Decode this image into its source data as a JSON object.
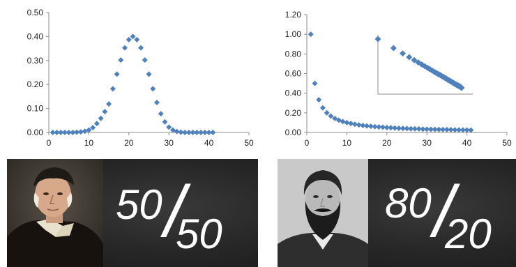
{
  "chart_data": [
    {
      "type": "scatter",
      "title": "",
      "xlabel": "",
      "ylabel": "",
      "xlim": [
        0,
        50
      ],
      "ylim": [
        0,
        0.5
      ],
      "x_ticks": [
        "0",
        "10",
        "20",
        "30",
        "40",
        "50"
      ],
      "y_ticks": [
        "0.00",
        "0.10",
        "0.20",
        "0.30",
        "0.40",
        "0.50"
      ],
      "grid": false,
      "marker": "diamond",
      "color": "#4f81bd",
      "series": [
        {
          "x": [
            1,
            2,
            3,
            4,
            5,
            6,
            7,
            8,
            9,
            10,
            11,
            12,
            13,
            14,
            15,
            16,
            17,
            18,
            19,
            20,
            21,
            22,
            23,
            24,
            25,
            26,
            27,
            28,
            29,
            30,
            31,
            32,
            33,
            34,
            35,
            36,
            37,
            38,
            39,
            40,
            41
          ],
          "y": [
            0.0,
            0.0,
            0.0,
            0.0,
            0.0,
            0.0,
            0.001,
            0.002,
            0.005,
            0.01,
            0.02,
            0.037,
            0.059,
            0.087,
            0.119,
            0.182,
            0.243,
            0.302,
            0.353,
            0.387,
            0.4,
            0.387,
            0.353,
            0.302,
            0.243,
            0.182,
            0.125,
            0.078,
            0.044,
            0.022,
            0.01,
            0.004,
            0.001,
            0.0,
            0.0,
            0.0,
            0.0,
            0.0,
            0.0,
            0.0,
            0.0
          ]
        }
      ]
    },
    {
      "type": "scatter",
      "title": "",
      "xlabel": "",
      "ylabel": "",
      "xlim": [
        0,
        50
      ],
      "ylim": [
        0,
        1.2
      ],
      "x_ticks": [
        "0",
        "10",
        "20",
        "30",
        "40",
        "50"
      ],
      "y_ticks": [
        "0.00",
        "0.20",
        "0.40",
        "0.60",
        "0.80",
        "1.00",
        "1.20"
      ],
      "grid": false,
      "marker": "diamond",
      "color": "#4f81bd",
      "series": [
        {
          "x": [
            1,
            2,
            3,
            4,
            5,
            6,
            7,
            8,
            9,
            10,
            11,
            12,
            13,
            14,
            15,
            16,
            17,
            18,
            19,
            20,
            21,
            22,
            23,
            24,
            25,
            26,
            27,
            28,
            29,
            30,
            31,
            32,
            33,
            34,
            35,
            36,
            37,
            38,
            39,
            40,
            41
          ],
          "y": [
            1.0,
            0.5,
            0.333,
            0.25,
            0.2,
            0.167,
            0.143,
            0.125,
            0.111,
            0.1,
            0.091,
            0.083,
            0.077,
            0.071,
            0.067,
            0.063,
            0.059,
            0.056,
            0.053,
            0.05,
            0.048,
            0.045,
            0.043,
            0.042,
            0.04,
            0.038,
            0.037,
            0.036,
            0.034,
            0.033,
            0.032,
            0.031,
            0.03,
            0.029,
            0.029,
            0.028,
            0.027,
            0.026,
            0.026,
            0.025,
            0.024
          ]
        }
      ],
      "inset": {
        "type": "scatter",
        "scale": "log-log",
        "axis_labels_shown": false,
        "series_ref": 0
      }
    }
  ],
  "panels": [
    {
      "ratio_top": "50",
      "ratio_bottom": "50"
    },
    {
      "ratio_top": "80",
      "ratio_bottom": "20"
    }
  ]
}
